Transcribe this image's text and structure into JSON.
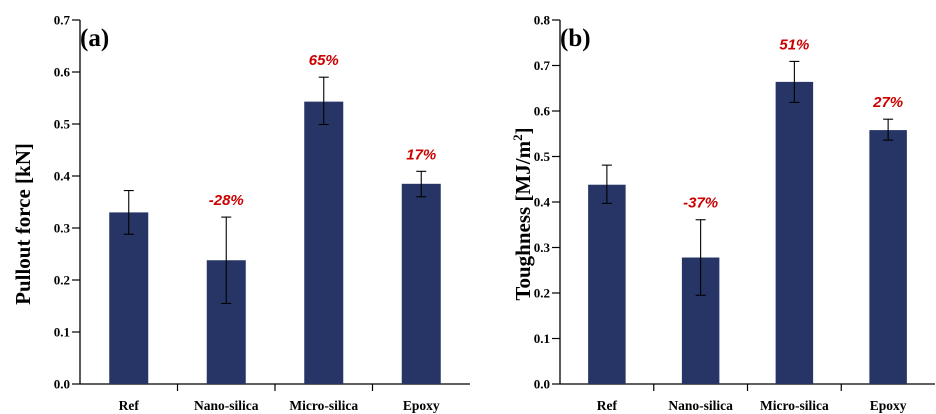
{
  "colors": {
    "bar": "#263566",
    "annotation": "#cc0000",
    "axis": "#000000"
  },
  "chart_data": [
    {
      "type": "bar",
      "panel_label": "(a)",
      "ylabel": "Pullout force [kN]",
      "ylim": [
        0,
        0.7
      ],
      "yticks": [
        "0.0",
        "0.1",
        "0.2",
        "0.3",
        "0.4",
        "0.5",
        "0.6",
        "0.7"
      ],
      "categories": [
        "Ref",
        "Nano-silica",
        "Micro-silica",
        "Epoxy"
      ],
      "values": [
        0.33,
        0.238,
        0.543,
        0.385
      ],
      "error_low": [
        0.288,
        0.155,
        0.499,
        0.36
      ],
      "error_high": [
        0.372,
        0.321,
        0.59,
        0.409
      ],
      "annotations": [
        "",
        "-28%",
        "65%",
        "17%"
      ]
    },
    {
      "type": "bar",
      "panel_label": "(b)",
      "ylabel": "Toughness [MJ/m²]",
      "ylabel_main": "Toughness [MJ/m",
      "ylabel_sup": "2",
      "ylabel_tail": "]",
      "ylim": [
        0,
        0.8
      ],
      "yticks": [
        "0.0",
        "0.1",
        "0.2",
        "0.3",
        "0.4",
        "0.5",
        "0.6",
        "0.7",
        "0.8"
      ],
      "categories": [
        "Ref",
        "Nano-silica",
        "Micro-silica",
        "Epoxy"
      ],
      "values": [
        0.438,
        0.278,
        0.664,
        0.558
      ],
      "error_low": [
        0.397,
        0.195,
        0.619,
        0.536
      ],
      "error_high": [
        0.481,
        0.361,
        0.709,
        0.582
      ],
      "annotations": [
        "",
        "-37%",
        "51%",
        "27%"
      ]
    }
  ]
}
